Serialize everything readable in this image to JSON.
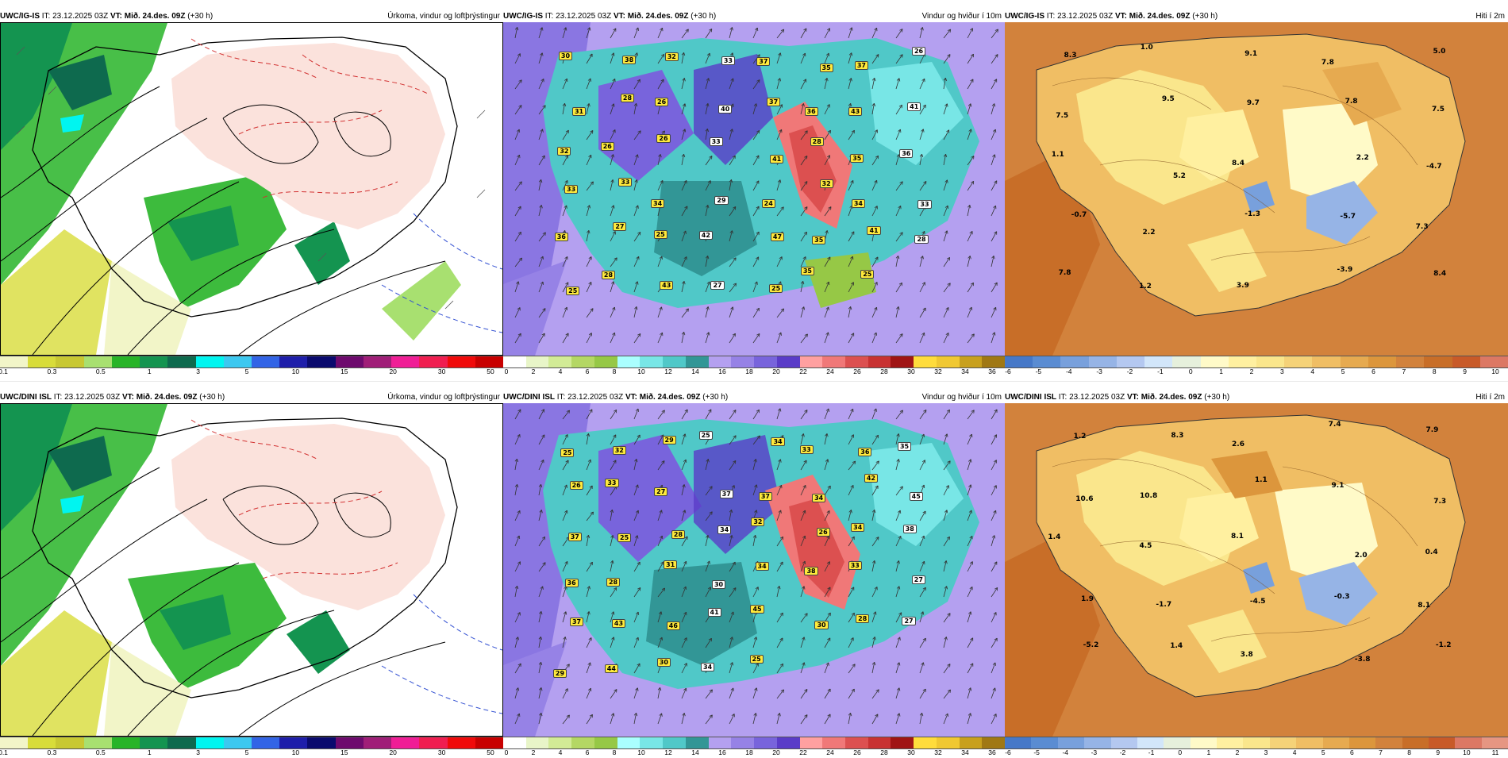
{
  "rows": [
    {
      "model": "UWC/IG-IS",
      "it_label": "IT:",
      "it_value": "23.12.2025 03Z",
      "vt_label": "VT:",
      "vt_value": "Mið. 24.des. 09Z",
      "lead": "(+30 h)"
    },
    {
      "model": "UWC/DINI ISL",
      "it_label": "IT:",
      "it_value": "23.12.2025 03Z",
      "vt_label": "VT:",
      "vt_value": "Mið. 24.des. 09Z",
      "lead": "(+30 h)"
    }
  ],
  "panels": {
    "precip": {
      "title": "Úrkoma, vindur og loftþrýstingur"
    },
    "wind": {
      "title": "Vindur og hviður í 10m"
    },
    "temp": {
      "title": "Hiti í 2m"
    }
  },
  "colorbars": {
    "precip": {
      "colors": [
        "#f2f5c8",
        "#d8dc3a",
        "#c8c832",
        "#a8e070",
        "#28b428",
        "#149450",
        "#0e6a4e",
        "#00f5f0",
        "#3cc8f0",
        "#3264e6",
        "#1e1eaa",
        "#0a0a6e",
        "#6e0a6e",
        "#a01e78",
        "#f01e96",
        "#f01e50",
        "#f00a0a",
        "#c80000"
      ],
      "ticks": [
        "0.1",
        "0.3",
        "0.5",
        "1",
        "3",
        "5",
        "10",
        "15",
        "20",
        "30",
        "50"
      ]
    },
    "wind": {
      "colors": [
        "#ffffff",
        "#e8f5c8",
        "#d2eb96",
        "#b4d764",
        "#96c846",
        "#aaffff",
        "#78e6e6",
        "#50c8c8",
        "#329696",
        "#b4a0f0",
        "#9682e6",
        "#7864dc",
        "#5a3cc8",
        "#ffa0a0",
        "#f07878",
        "#dc5050",
        "#c83232",
        "#a01414",
        "#ffdc3c",
        "#f0c832",
        "#c8a01e",
        "#a07814"
      ],
      "ticks": [
        "0",
        "2",
        "4",
        "6",
        "8",
        "10",
        "12",
        "14",
        "16",
        "18",
        "20",
        "22",
        "24",
        "26",
        "28",
        "30",
        "32",
        "34",
        "36"
      ]
    },
    "temp_top": {
      "colors": [
        "#4678c8",
        "#5a8cd2",
        "#78a0dc",
        "#96b4e6",
        "#b4c8f0",
        "#d2e6fa",
        "#e6f0dc",
        "#fffac8",
        "#fff0a0",
        "#fae68c",
        "#f5d278",
        "#f0be64",
        "#e6aa50",
        "#dc963c",
        "#d2823c",
        "#c86e28",
        "#c85a28",
        "#dc7864"
      ],
      "ticks": [
        "-6",
        "-5",
        "-4",
        "-3",
        "-2",
        "-1",
        "0",
        "1",
        "2",
        "3",
        "4",
        "5",
        "6",
        "7",
        "8",
        "9",
        "10"
      ]
    },
    "temp_bottom": {
      "colors": [
        "#4678c8",
        "#5a8cd2",
        "#78a0dc",
        "#96b4e6",
        "#b4c8f0",
        "#d2e6fa",
        "#e6f0dc",
        "#fffac8",
        "#fff0a0",
        "#fae68c",
        "#f5d278",
        "#f0be64",
        "#e6aa50",
        "#dc963c",
        "#d2823c",
        "#c86e28",
        "#c85a28",
        "#dc7864",
        "#e69682"
      ],
      "ticks": [
        "-6",
        "-5",
        "-4",
        "-3",
        "-2",
        "-1",
        "0",
        "1",
        "2",
        "3",
        "4",
        "5",
        "6",
        "7",
        "8",
        "9",
        "10",
        "11"
      ]
    }
  },
  "temp_labels": {
    "top": [
      "8.3",
      "1.0",
      "9.1",
      "7.8",
      "5.0",
      "7.5",
      "9.5",
      "9.7",
      "7.8",
      "7.5",
      "1.1",
      "5.2",
      "8.4",
      "2.2",
      "-4.7",
      "-0.7",
      "2.2",
      "-1.3",
      "-5.7",
      "7.3",
      "7.8",
      "1.2",
      "3.9",
      "-3.9",
      "8.4"
    ],
    "bottom": [
      "1.2",
      "8.3",
      "2.6",
      "7.4",
      "7.9",
      "10.6",
      "10.8",
      "1.1",
      "9.1",
      "7.3",
      "1.4",
      "4.5",
      "8.1",
      "2.0",
      "0.4",
      "1.9",
      "-1.7",
      "-4.5",
      "-0.3",
      "8.1",
      "-5.2",
      "1.4",
      "3.8",
      "-3.8",
      "-1.2"
    ]
  },
  "wind_labels": {
    "top": [
      "30",
      "38",
      "32",
      "33",
      "37",
      "35",
      "37",
      "26",
      "31",
      "28",
      "26",
      "40",
      "37",
      "36",
      "43",
      "41",
      "32",
      "26",
      "26",
      "33",
      "41",
      "28",
      "35",
      "36",
      "33",
      "33",
      "34",
      "29",
      "24",
      "32",
      "34",
      "33",
      "36",
      "27",
      "25",
      "42",
      "47",
      "35",
      "41",
      "28",
      "25",
      "28",
      "43",
      "27",
      "25",
      "35",
      "25"
    ],
    "bottom": [
      "25",
      "32",
      "29",
      "25",
      "34",
      "33",
      "36",
      "35",
      "26",
      "33",
      "27",
      "37",
      "37",
      "34",
      "42",
      "45",
      "37",
      "25",
      "28",
      "34",
      "32",
      "26",
      "34",
      "38",
      "36",
      "28",
      "31",
      "30",
      "34",
      "38",
      "33",
      "27",
      "37",
      "43",
      "46",
      "41",
      "45",
      "30",
      "28",
      "27",
      "29",
      "44",
      "30",
      "34",
      "25"
    ]
  }
}
